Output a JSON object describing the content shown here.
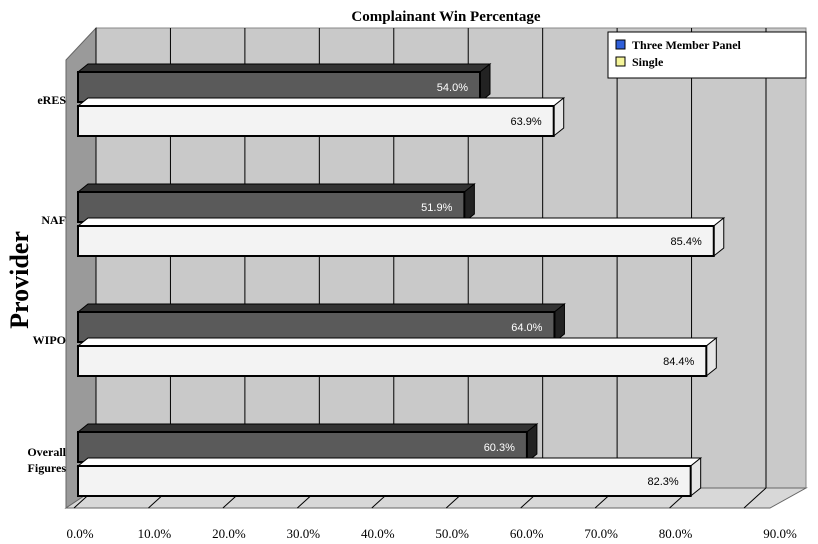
{
  "chart_data": {
    "type": "bar",
    "orientation": "horizontal",
    "title": "Complainant Win Percentage",
    "ylabel": "Provider",
    "xlabel": "",
    "categories": [
      "eRES",
      "NAF",
      "WIPO",
      "Overall\nFigures"
    ],
    "series": [
      {
        "name": "Three Member Panel",
        "values": [
          54.0,
          51.9,
          64.0,
          60.3
        ],
        "color": "#5a5a5a",
        "legend_color": "#2f5fd9"
      },
      {
        "name": "Single",
        "values": [
          63.9,
          85.4,
          84.4,
          82.3
        ],
        "color": "#f3f3f3",
        "legend_color": "#f5f59a"
      }
    ],
    "value_format": "%",
    "xlim": [
      0,
      90
    ],
    "xticks": [
      "0.0%",
      "10.0%",
      "20.0%",
      "30.0%",
      "40.0%",
      "50.0%",
      "60.0%",
      "70.0%",
      "80.0%",
      "90.0%"
    ],
    "grid": true,
    "legend_position": "top-right",
    "three_d": true
  }
}
